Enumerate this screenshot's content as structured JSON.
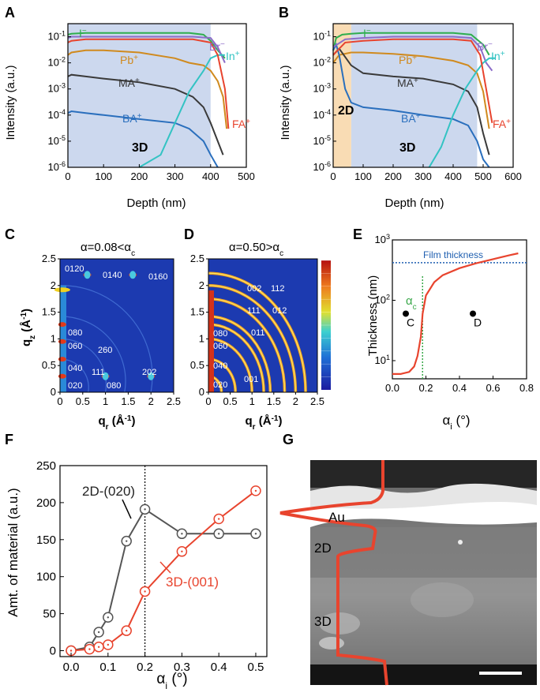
{
  "panels": {
    "A": {
      "letter": "A",
      "ylabel": "Intensity (a.u.)",
      "xlabel": "Depth (nm)",
      "region_label": "3D",
      "xticks": [
        "0",
        "100",
        "200",
        "300",
        "400",
        "500"
      ],
      "yticks": [
        "10^-1",
        "10^-2",
        "10^-3",
        "10^-4",
        "10^-5",
        "10^-6"
      ],
      "species": [
        "I-",
        "Pb+",
        "MA+",
        "BA+",
        "Br-",
        "In+",
        "FA+"
      ]
    },
    "B": {
      "letter": "B",
      "ylabel": "Intensity (a.u.)",
      "xlabel": "Depth (nm)",
      "region_labels": [
        "2D",
        "3D"
      ],
      "xticks": [
        "0",
        "100",
        "200",
        "300",
        "400",
        "500",
        "600"
      ],
      "yticks": [
        "10^-1",
        "10^-2",
        "10^-3",
        "10^-4",
        "10^-5",
        "10^-6"
      ],
      "species": [
        "I-",
        "Pb+",
        "MA+",
        "BA+",
        "Br-",
        "In+",
        "FA+"
      ]
    },
    "C": {
      "letter": "C",
      "title": "α=0.08<αc",
      "xlabel": "qr (Å-1)",
      "ylabel": "qz (Å-1)",
      "xticks": [
        "0",
        "0.5",
        "1",
        "1.5",
        "2",
        "2.5"
      ],
      "yticks": [
        "0",
        "0.5",
        "1",
        "1.5",
        "2",
        "2.5"
      ],
      "peaks": [
        "0120",
        "0140",
        "0160",
        "080",
        "060",
        "2̄60",
        "040",
        "111",
        "202",
        "020",
        "080"
      ]
    },
    "D": {
      "letter": "D",
      "title": "α=0.50>αc",
      "xlabel": "qr (Å-1)",
      "ylabel": "qz (Å-1)",
      "xticks": [
        "0",
        "0.5",
        "1",
        "1.5",
        "2",
        "2.5"
      ],
      "yticks": [
        "0",
        "0.5",
        "1",
        "1.5",
        "2",
        "2.5"
      ],
      "peaks": [
        "002",
        "112",
        "111",
        "012",
        "080",
        "011",
        "060",
        "040",
        "001",
        "020"
      ]
    },
    "E": {
      "letter": "E",
      "xlabel": "αi (°)",
      "ylabel": "Thickness (nm)",
      "annotation": "Film thickness",
      "alpha_c_label": "αc",
      "point_labels": [
        "C",
        "D"
      ],
      "xticks": [
        "0.0",
        "0.2",
        "0.4",
        "0.6",
        "0.8"
      ],
      "yticks": [
        "10^1",
        "10^2",
        "10^3"
      ]
    },
    "F": {
      "letter": "F",
      "xlabel": "αi (°)",
      "ylabel": "Amt. of material (a.u.)",
      "series_labels": [
        "2D-(020)",
        "3D-(001)"
      ],
      "xticks": [
        "0.0",
        "0.1",
        "0.2",
        "0.3",
        "0.4",
        "0.5"
      ],
      "yticks": [
        "0",
        "50",
        "100",
        "150",
        "200",
        "250"
      ]
    },
    "G": {
      "letter": "G",
      "labels": [
        "Au",
        "2D",
        "3D"
      ]
    }
  },
  "colors": {
    "I-": "#2fae4e",
    "Pb+": "#d08a1e",
    "MA+": "#3a3a3a",
    "BA+": "#2a6fbd",
    "Br-": "#8b6cc8",
    "In+": "#33c3c3",
    "FA+": "#e8442e",
    "shade_3d": "#ccd8ee",
    "shade_2d": "#f9dcb4",
    "red": "#e8442e",
    "grey": "#555555"
  },
  "chart_data": [
    {
      "panel": "A",
      "type": "line",
      "xlim": [
        0,
        500
      ],
      "ylim_log10": [
        -6,
        -0.5
      ],
      "yscale": "log",
      "shaded_3d_range": [
        0,
        400
      ],
      "series": [
        {
          "name": "I-",
          "x": [
            0,
            10,
            50,
            100,
            200,
            300,
            340,
            380,
            400,
            420,
            440
          ],
          "y": [
            0.12,
            0.13,
            0.14,
            0.14,
            0.14,
            0.14,
            0.14,
            0.12,
            0.07,
            0.03,
            0.015
          ]
        },
        {
          "name": "Pb+",
          "x": [
            0,
            10,
            50,
            100,
            200,
            300,
            340,
            380,
            400,
            420,
            435,
            445
          ],
          "y": [
            0.02,
            0.025,
            0.03,
            0.03,
            0.025,
            0.015,
            0.01,
            0.008,
            0.005,
            0.002,
            0.0005,
            3e-05
          ]
        },
        {
          "name": "MA+",
          "x": [
            0,
            10,
            50,
            100,
            200,
            300,
            350,
            380,
            400,
            420,
            435
          ],
          "y": [
            0.003,
            0.0035,
            0.003,
            0.0025,
            0.0018,
            0.001,
            0.0005,
            0.0002,
            5e-05,
            1e-05,
            3e-06
          ]
        },
        {
          "name": "BA+",
          "x": [
            0,
            10,
            50,
            100,
            200,
            300,
            340,
            380,
            400,
            420
          ],
          "y": [
            0.00012,
            0.00014,
            0.00012,
            0.0001,
            7e-05,
            5e-05,
            3e-05,
            1e-05,
            3e-06,
            1e-06
          ]
        },
        {
          "name": "Br-",
          "x": [
            0,
            10,
            50,
            100,
            200,
            300,
            350,
            400,
            420,
            440
          ],
          "y": [
            0.09,
            0.1,
            0.1,
            0.1,
            0.1,
            0.1,
            0.1,
            0.09,
            0.04,
            0.01
          ]
        },
        {
          "name": "In+",
          "x": [
            200,
            260,
            300,
            340,
            380,
            400,
            420,
            440
          ],
          "y": [
            1e-06,
            3e-06,
            5e-05,
            0.0008,
            0.005,
            0.015,
            0.02,
            0.02
          ]
        },
        {
          "name": "FA+",
          "x": [
            0,
            10,
            50,
            100,
            200,
            300,
            350,
            400,
            420,
            440,
            450
          ],
          "y": [
            0.06,
            0.07,
            0.08,
            0.08,
            0.08,
            0.08,
            0.08,
            0.06,
            0.02,
            0.001,
            3e-05
          ]
        }
      ]
    },
    {
      "panel": "B",
      "type": "line",
      "xlim": [
        0,
        600
      ],
      "ylim_log10": [
        -6,
        -0.5
      ],
      "yscale": "log",
      "shaded_2d_range": [
        0,
        60
      ],
      "shaded_3d_range": [
        60,
        480
      ],
      "series": [
        {
          "name": "I-",
          "x": [
            0,
            10,
            30,
            60,
            100,
            200,
            300,
            400,
            460,
            500,
            520
          ],
          "y": [
            0.03,
            0.09,
            0.12,
            0.13,
            0.14,
            0.14,
            0.14,
            0.14,
            0.12,
            0.05,
            0.02
          ]
        },
        {
          "name": "Pb+",
          "x": [
            0,
            20,
            60,
            100,
            200,
            300,
            400,
            450,
            480,
            500,
            520
          ],
          "y": [
            0.01,
            0.02,
            0.025,
            0.025,
            0.022,
            0.018,
            0.012,
            0.008,
            0.004,
            0.0008,
            3e-05
          ]
        },
        {
          "name": "MA+",
          "x": [
            0,
            20,
            60,
            100,
            200,
            300,
            400,
            450,
            480,
            500,
            520
          ],
          "y": [
            0.02,
            0.035,
            0.008,
            0.004,
            0.003,
            0.0025,
            0.0015,
            0.0008,
            0.0002,
            2e-05,
            3e-06
          ]
        },
        {
          "name": "BA+",
          "x": [
            0,
            10,
            20,
            40,
            60,
            100,
            200,
            300,
            400,
            450,
            480,
            500,
            520
          ],
          "y": [
            0.03,
            0.05,
            0.02,
            0.001,
            0.0003,
            0.0002,
            0.00015,
            0.0001,
            7e-05,
            4e-05,
            1e-05,
            2e-06,
            1e-06
          ]
        },
        {
          "name": "Br-",
          "x": [
            0,
            40,
            100,
            200,
            300,
            400,
            460,
            490,
            510,
            530
          ],
          "y": [
            0.04,
            0.08,
            0.09,
            0.1,
            0.1,
            0.1,
            0.09,
            0.04,
            0.01,
            0.005
          ]
        },
        {
          "name": "In+",
          "x": [
            320,
            360,
            400,
            440,
            480,
            500,
            520,
            540
          ],
          "y": [
            1e-06,
            6e-06,
            0.0001,
            0.001,
            0.005,
            0.01,
            0.015,
            0.015
          ]
        },
        {
          "name": "FA+",
          "x": [
            0,
            40,
            100,
            200,
            300,
            400,
            460,
            490,
            510,
            530
          ],
          "y": [
            0.02,
            0.06,
            0.07,
            0.08,
            0.08,
            0.08,
            0.07,
            0.02,
            0.001,
            5e-05
          ]
        }
      ]
    },
    {
      "panel": "C",
      "type": "heatmap",
      "title": "α=0.08<αc",
      "xlim": [
        0,
        2.5
      ],
      "ylim": [
        0,
        2.5
      ],
      "features": [
        {
          "label": "020",
          "qr": 0.05,
          "qz": 0.3
        },
        {
          "label": "040",
          "qr": 0.05,
          "qz": 0.62
        },
        {
          "label": "060",
          "qr": 0.05,
          "qz": 0.95
        },
        {
          "label": "080",
          "qr": 0.05,
          "qz": 1.27
        },
        {
          "label": "0120",
          "qr": 0.05,
          "qz": 1.92
        },
        {
          "label": "0140",
          "qr": 0.6,
          "qz": 2.2
        },
        {
          "label": "0160",
          "qr": 1.6,
          "qz": 2.2
        },
        {
          "label": "111",
          "qr": 1.0,
          "qz": 0.3
        },
        {
          "label": "202",
          "qr": 2.0,
          "qz": 0.3
        }
      ]
    },
    {
      "panel": "D",
      "type": "heatmap",
      "title": "α=0.50>αc",
      "xlim": [
        0,
        2.5
      ],
      "ylim": [
        0,
        2.5
      ],
      "rings_q": [
        0.3,
        0.62,
        1.0,
        1.27,
        1.42,
        1.75,
        2.0,
        2.23
      ]
    },
    {
      "panel": "E",
      "type": "line",
      "xlim": [
        0,
        0.8
      ],
      "ylim": [
        5,
        1000
      ],
      "yscale": "log",
      "film_thickness": 420,
      "alpha_c": 0.18,
      "series": [
        {
          "name": "",
          "x": [
            0.0,
            0.05,
            0.1,
            0.13,
            0.15,
            0.17,
            0.18,
            0.2,
            0.25,
            0.3,
            0.4,
            0.5,
            0.6,
            0.7,
            0.75
          ],
          "y": [
            6,
            6,
            6.5,
            8,
            12,
            25,
            60,
            120,
            200,
            260,
            340,
            410,
            480,
            560,
            600
          ]
        }
      ],
      "points": [
        {
          "label": "C",
          "x": 0.08,
          "y": 60
        },
        {
          "label": "D",
          "x": 0.48,
          "y": 60
        }
      ]
    },
    {
      "panel": "F",
      "type": "line",
      "xlim": [
        0,
        0.5
      ],
      "ylim": [
        0,
        250
      ],
      "series": [
        {
          "name": "2D-(020)",
          "x": [
            0.0,
            0.05,
            0.075,
            0.1,
            0.15,
            0.2,
            0.3,
            0.4,
            0.5
          ],
          "y": [
            0,
            5,
            25,
            45,
            148,
            191,
            158,
            158,
            158
          ]
        },
        {
          "name": "3D-(001)",
          "x": [
            0.0,
            0.05,
            0.075,
            0.1,
            0.15,
            0.2,
            0.3,
            0.4,
            0.5
          ],
          "y": [
            0,
            2,
            5,
            8,
            27,
            80,
            134,
            178,
            216
          ]
        }
      ]
    }
  ]
}
